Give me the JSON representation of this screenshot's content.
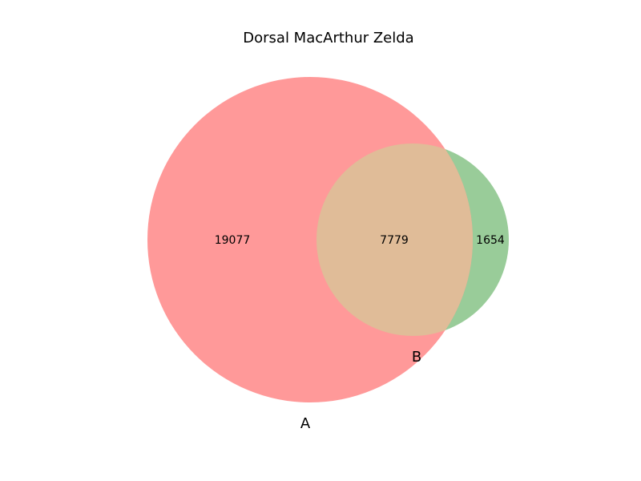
{
  "title": "Dorsal MacArthur Zelda",
  "sets": [
    {
      "label": "A",
      "color": "#ff9999"
    },
    {
      "label": "B",
      "color": "#99cc99"
    }
  ],
  "overlap_color": "#e0bc98",
  "regions": {
    "a_only": "19077",
    "intersection": "7779",
    "b_only": "1654"
  }
}
